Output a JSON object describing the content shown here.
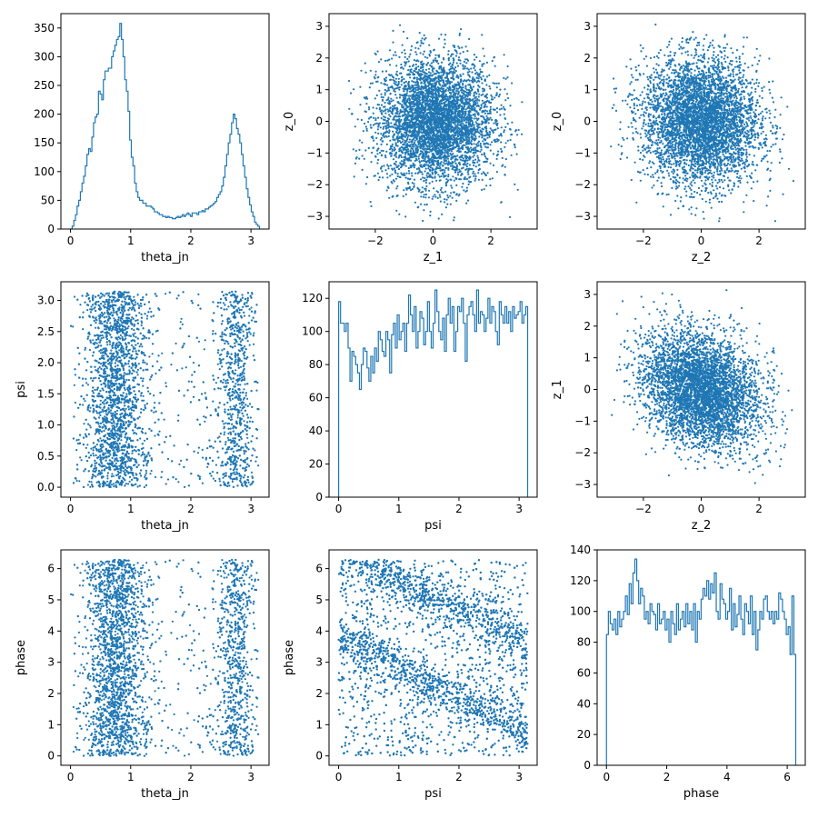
{
  "figure": {
    "series_color": "#1f77b4",
    "background": "#ffffff"
  },
  "chart_data": [
    {
      "id": "p00",
      "type": "histogram",
      "xlabel": "theta_jn",
      "ylabel": "",
      "xlim": [
        -0.16,
        3.3
      ],
      "ylim": [
        0,
        375
      ],
      "xticks": [
        0,
        1,
        2,
        3
      ],
      "yticks": [
        0,
        50,
        100,
        150,
        200,
        250,
        300,
        350
      ],
      "bin_edges_range": [
        0,
        3.14159
      ],
      "values": [
        0,
        5,
        15,
        25,
        40,
        50,
        65,
        80,
        92,
        110,
        130,
        140,
        135,
        160,
        185,
        195,
        200,
        240,
        235,
        225,
        260,
        275,
        275,
        280,
        280,
        300,
        310,
        320,
        330,
        335,
        358,
        330,
        300,
        260,
        240,
        205,
        155,
        125,
        110,
        80,
        65,
        55,
        50,
        50,
        45,
        45,
        40,
        40,
        40,
        38,
        35,
        30,
        30,
        28,
        25,
        25,
        22,
        22,
        20,
        22,
        20,
        20,
        18,
        18,
        20,
        22,
        20,
        22,
        25,
        22,
        25,
        28,
        25,
        22,
        28,
        28,
        28,
        25,
        30,
        30,
        32,
        30,
        35,
        35,
        38,
        40,
        42,
        45,
        48,
        55,
        60,
        65,
        75,
        90,
        110,
        130,
        150,
        165,
        185,
        200,
        192,
        175,
        165,
        150,
        130,
        110,
        90,
        70,
        55,
        42,
        30,
        22,
        12,
        8,
        5
      ]
    },
    {
      "id": "p01",
      "type": "scatter",
      "xlabel": "z_1",
      "ylabel": "z_0",
      "xlim": [
        -3.6,
        3.6
      ],
      "ylim": [
        -3.4,
        3.4
      ],
      "xticks": [
        -2,
        0,
        2
      ],
      "yticks": [
        -3,
        -2,
        -1,
        0,
        1,
        2,
        3
      ],
      "points": {
        "n": 4500,
        "distribution": "gaussian",
        "x_mean": 0.1,
        "x_sd": 1,
        "y_mean": 0,
        "y_sd": 1,
        "correlation": 0,
        "clip": 3.2
      }
    },
    {
      "id": "p02",
      "type": "scatter",
      "xlabel": "z_2",
      "ylabel": "z_0",
      "xlim": [
        -3.6,
        3.6
      ],
      "ylim": [
        -3.4,
        3.4
      ],
      "xticks": [
        -2,
        0,
        2
      ],
      "yticks": [
        -3,
        -2,
        -1,
        0,
        1,
        2,
        3
      ],
      "points": {
        "n": 4500,
        "distribution": "gaussian",
        "x_mean": 0,
        "x_sd": 1,
        "y_mean": 0,
        "y_sd": 1,
        "correlation": -0.05,
        "clip": 3.2
      }
    },
    {
      "id": "p10",
      "type": "scatter",
      "xlabel": "theta_jn",
      "ylabel": "psi",
      "xlim": [
        -0.16,
        3.3
      ],
      "ylim": [
        -0.16,
        3.3
      ],
      "xticks": [
        0,
        1,
        2,
        3
      ],
      "yticks": [
        0.0,
        0.5,
        1.0,
        1.5,
        2.0,
        2.5,
        3.0
      ],
      "points": {
        "n": 4500,
        "distribution": "bimodal-x-uniform-y",
        "x_clusters": [
          {
            "center": 0.75,
            "sd": 0.25,
            "weight": 0.6
          },
          {
            "center": 2.75,
            "sd": 0.14,
            "weight": 0.25
          }
        ],
        "x_uniform_weight": 0.15,
        "x_range": [
          0,
          3.14159
        ],
        "y_range": [
          0,
          3.14159
        ]
      }
    },
    {
      "id": "p11",
      "type": "histogram",
      "xlabel": "psi",
      "ylabel": "",
      "xlim": [
        -0.16,
        3.3
      ],
      "ylim": [
        0,
        130
      ],
      "xticks": [
        0,
        1,
        2,
        3
      ],
      "yticks": [
        0,
        20,
        40,
        60,
        80,
        100,
        120
      ],
      "bin_edges_range": [
        0,
        3.14159
      ],
      "values": [
        118,
        105,
        105,
        100,
        105,
        90,
        70,
        88,
        85,
        80,
        75,
        65,
        80,
        90,
        88,
        78,
        70,
        85,
        75,
        90,
        82,
        100,
        95,
        88,
        85,
        100,
        95,
        75,
        98,
        105,
        90,
        110,
        95,
        100,
        105,
        88,
        105,
        122,
        110,
        100,
        115,
        90,
        100,
        112,
        108,
        92,
        100,
        118,
        100,
        90,
        105,
        125,
        112,
        100,
        95,
        108,
        88,
        110,
        120,
        105,
        115,
        88,
        100,
        115,
        112,
        120,
        105,
        82,
        110,
        115,
        118,
        110,
        100,
        125,
        105,
        112,
        110,
        100,
        108,
        120,
        105,
        115,
        112,
        100,
        92,
        118,
        110,
        105,
        115,
        105,
        112,
        100,
        115,
        108,
        110,
        112,
        118,
        105,
        110,
        115
      ]
    },
    {
      "id": "p12",
      "type": "scatter",
      "xlabel": "z_2",
      "ylabel": "z_1",
      "xlim": [
        -3.6,
        3.6
      ],
      "ylim": [
        -3.4,
        3.4
      ],
      "xticks": [
        -2,
        0,
        2
      ],
      "yticks": [
        -3,
        -2,
        -1,
        0,
        1,
        2,
        3
      ],
      "points": {
        "n": 4500,
        "distribution": "gaussian",
        "x_mean": 0,
        "x_sd": 1,
        "y_mean": 0,
        "y_sd": 0.9,
        "correlation": -0.25,
        "clip": 3.2
      }
    },
    {
      "id": "p20",
      "type": "scatter",
      "xlabel": "theta_jn",
      "ylabel": "phase",
      "xlim": [
        -0.16,
        3.3
      ],
      "ylim": [
        -0.3,
        6.6
      ],
      "xticks": [
        0,
        1,
        2,
        3
      ],
      "yticks": [
        0,
        1,
        2,
        3,
        4,
        5,
        6
      ],
      "points": {
        "n": 4500,
        "distribution": "bimodal-x-uniform-y",
        "x_clusters": [
          {
            "center": 0.75,
            "sd": 0.25,
            "weight": 0.6
          },
          {
            "center": 2.75,
            "sd": 0.14,
            "weight": 0.25
          }
        ],
        "x_uniform_weight": 0.15,
        "x_range": [
          0,
          3.14159
        ],
        "y_range": [
          0,
          6.28318
        ]
      }
    },
    {
      "id": "p21",
      "type": "scatter",
      "xlabel": "psi",
      "ylabel": "phase",
      "xlim": [
        -0.16,
        3.3
      ],
      "ylim": [
        -0.3,
        6.6
      ],
      "xticks": [
        0,
        1,
        2,
        3
      ],
      "yticks": [
        0,
        1,
        2,
        3,
        4,
        5,
        6
      ],
      "points": {
        "n": 5500,
        "distribution": "diagonal-bands",
        "x_range": [
          0,
          3.14159
        ],
        "y_range": [
          0,
          6.28318
        ],
        "bands": [
          {
            "slope": -0.95,
            "intercept": 6.6,
            "sd": 0.35
          },
          {
            "slope": -0.95,
            "intercept": 3.75,
            "sd": 0.35
          }
        ],
        "band_weight": 0.55
      }
    },
    {
      "id": "p22",
      "type": "histogram",
      "xlabel": "phase",
      "ylabel": "",
      "xlim": [
        -0.31,
        6.6
      ],
      "ylim": [
        0,
        140
      ],
      "xticks": [
        0,
        2,
        4,
        6
      ],
      "yticks": [
        0,
        20,
        40,
        60,
        80,
        100,
        120,
        140
      ],
      "bin_edges_range": [
        0,
        6.28318
      ],
      "values": [
        85,
        100,
        92,
        88,
        95,
        85,
        100,
        90,
        95,
        100,
        110,
        98,
        118,
        105,
        125,
        134,
        120,
        105,
        115,
        110,
        95,
        100,
        92,
        105,
        100,
        98,
        88,
        105,
        92,
        95,
        100,
        88,
        95,
        80,
        100,
        92,
        85,
        105,
        88,
        95,
        100,
        90,
        105,
        92,
        100,
        88,
        105,
        80,
        100,
        95,
        108,
        115,
        110,
        120,
        108,
        118,
        112,
        125,
        100,
        95,
        118,
        108,
        105,
        95,
        100,
        115,
        88,
        105,
        90,
        98,
        110,
        95,
        85,
        105,
        100,
        92,
        110,
        85,
        100,
        75,
        88,
        100,
        95,
        108,
        110,
        100,
        95,
        100,
        92,
        100,
        95,
        112,
        108,
        100,
        95,
        85,
        90,
        72,
        110,
        72
      ]
    }
  ]
}
